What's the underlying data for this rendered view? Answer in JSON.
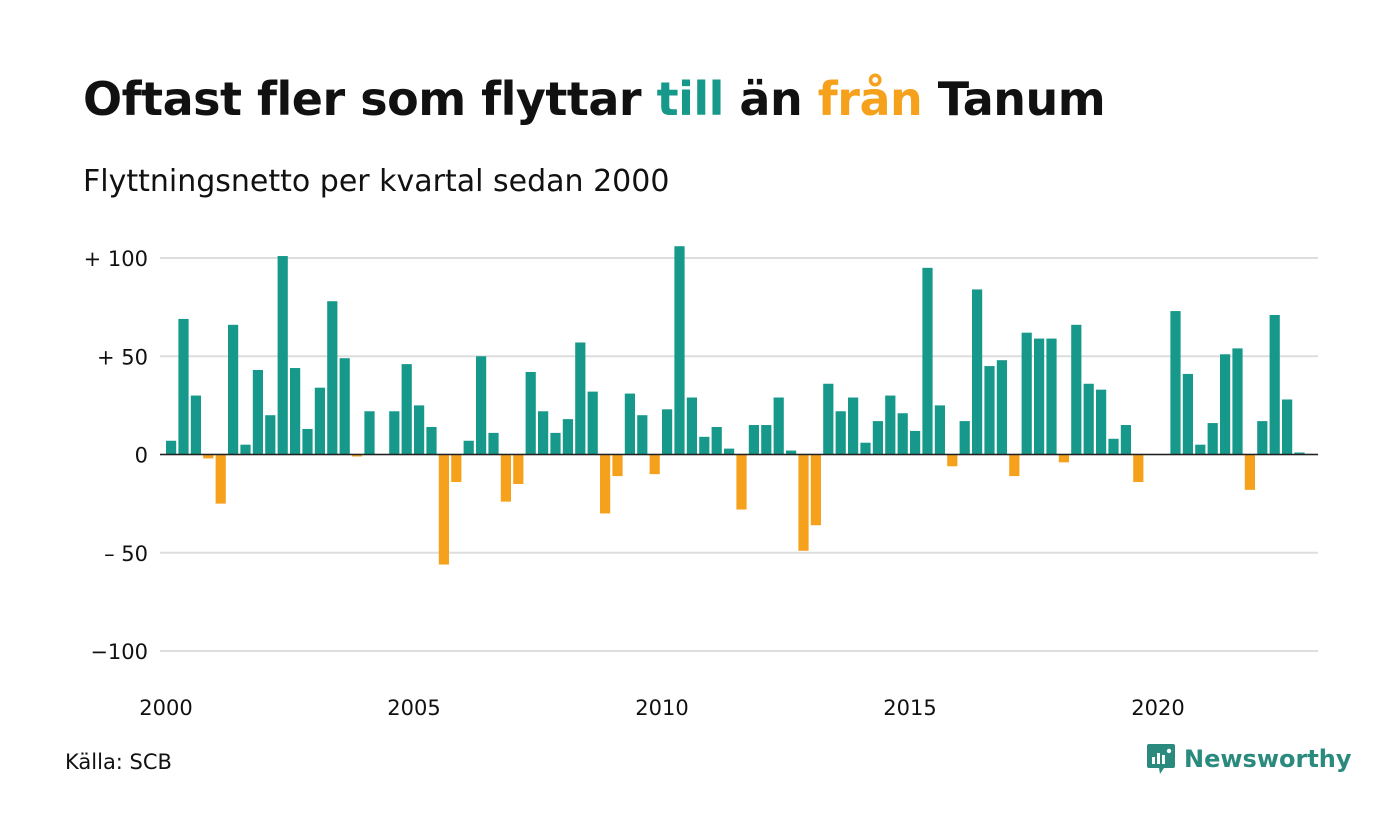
{
  "header": {
    "title_parts": [
      "Oftast fler som flyttar ",
      "till",
      " än ",
      "från",
      " Tanum"
    ],
    "subtitle": "Flyttningsnetto per kvartal sedan 2000"
  },
  "footer": {
    "source": "Källa: SCB",
    "brand": "Newsworthy",
    "brand_icon": "newsworthy-logo-icon"
  },
  "colors": {
    "positive": "#16998a",
    "negative": "#f6a11c",
    "grid": "#dddddd",
    "brand": "#2a8a7e"
  },
  "chart_data": {
    "type": "bar",
    "title": "Oftast fler som flyttar till än från Tanum",
    "subtitle": "Flyttningsnetto per kvartal sedan 2000",
    "xlabel": "",
    "ylabel": "",
    "ylim": [
      -100,
      100
    ],
    "yticks": [
      100,
      50,
      0,
      -50,
      -100
    ],
    "ytick_labels": [
      "+ 100",
      "+  50",
      "0",
      "– 50",
      "−100"
    ],
    "xticks": [
      2000,
      2005,
      2010,
      2015,
      2020
    ],
    "grid": true,
    "legend": "none",
    "period": "quarterly",
    "start": "2000 Q1",
    "values": [
      7,
      69,
      30,
      -2,
      -25,
      66,
      5,
      43,
      20,
      101,
      44,
      13,
      34,
      78,
      49,
      -1,
      22,
      0,
      22,
      46,
      25,
      14,
      -56,
      -14,
      7,
      50,
      11,
      -24,
      -15,
      42,
      22,
      11,
      18,
      57,
      32,
      -30,
      -11,
      31,
      20,
      -10,
      23,
      106,
      29,
      9,
      14,
      3,
      -28,
      15,
      15,
      29,
      2,
      -49,
      -36,
      36,
      22,
      29,
      6,
      17,
      30,
      21,
      12,
      95,
      25,
      -6,
      17,
      84,
      45,
      48,
      -11,
      62,
      59,
      59,
      -4,
      66,
      36,
      33,
      8,
      15,
      -14,
      0,
      0,
      73,
      41,
      5,
      16,
      51,
      54,
      -18,
      17,
      71,
      28,
      1
    ]
  }
}
